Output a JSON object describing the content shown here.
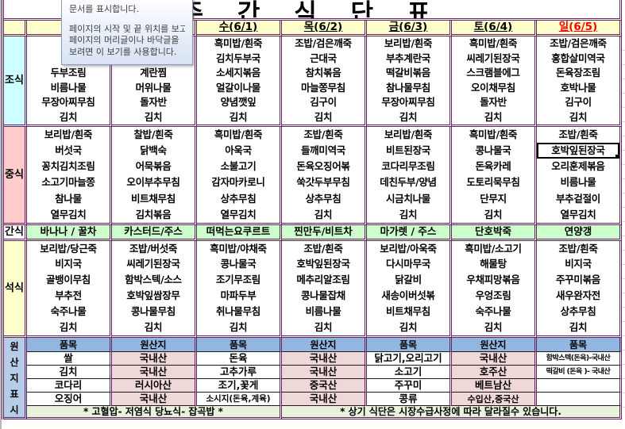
{
  "title": "주 간 식 단 표",
  "tooltip": {
    "lines": [
      "문서를 표시합니다.",
      "",
      "페이지의 시작 및 끝 위치를 보고",
      "페이지의 머리글이나 바닥글을",
      "보려면 이 보기를 사용합니다."
    ]
  },
  "colors": {
    "border_purple": "#632363",
    "header_yellow": "#FFFFCC",
    "breakfast_cyan": "#CCFFFF",
    "lunch_pink": "#FFCCCC",
    "snack_green": "#CCFFCC",
    "dinner_yellow": "#FFFFCC",
    "origin_label_blue": "#B5CDE8",
    "origin_header_blue": "#92B6DF",
    "origin_value_pink": "#F1D8D8",
    "note_green": "#EAF1DD",
    "sunday_red": "#FF0000"
  },
  "menu": {
    "day_headers": [
      "",
      "",
      "수(6/1)",
      "목(6/2)",
      "금(6/3)",
      "토(6/4)",
      "일(6/5)"
    ],
    "labels": {
      "breakfast": "조식",
      "lunch": "중식",
      "snack": "간식",
      "dinner": "석식"
    },
    "breakfast": [
      [
        "",
        "",
        "두부조림",
        "비름나물",
        "무장아찌무침",
        "김치"
      ],
      [
        "",
        "",
        "계란찜",
        "머위나물",
        "돌자반",
        "김치"
      ],
      [
        "흑미밥/흰죽",
        "김치두부국",
        "소세지볶음",
        "얼갈이나물",
        "양념깻잎",
        "김치"
      ],
      [
        "조밥/검은깨죽",
        "근대국",
        "참치볶음",
        "마늘쫑무침",
        "김구이",
        "김치"
      ],
      [
        "보리밥/흰죽",
        "부추계란국",
        "떡갈비볶음",
        "참나물무침",
        "무장아찌무침",
        "김치"
      ],
      [
        "흑미밥/흰죽",
        "씨레기된장국",
        "스크램블에그",
        "오이채무침",
        "돌자반",
        "김치"
      ],
      [
        "조밥/검은깨죽",
        "홍합살미역국",
        "돈육장조림",
        "호박나물",
        "김구이",
        "김치"
      ]
    ],
    "lunch": [
      [
        "보리밥/흰죽",
        "버섯국",
        "꽁치김치조림",
        "소고기마늘쫑",
        "참나물",
        "열무김치"
      ],
      [
        "찰밥/흰죽",
        "닭백숙",
        "어묵볶음",
        "오이부추무침",
        "비트채무침",
        "김치볶음"
      ],
      [
        "흑미밥/흰죽",
        "아욱국",
        "소불고기",
        "감자마카로니",
        "상추무침",
        "열무김치"
      ],
      [
        "조밥/흰죽",
        "들깨미역국",
        "돈육오징어볶",
        "쑥갓두부무침",
        "상추무침",
        "김치"
      ],
      [
        "보리밥/흰죽",
        "비트된장국",
        "코다리무조림",
        "데친두부/양념",
        "시금치나물",
        "김치"
      ],
      [
        "흑미밥/흰죽",
        "콩나물국",
        "돈육카레",
        "도토리묵무침",
        "단무지",
        "김치"
      ],
      [
        "조밥/흰죽",
        "호박잎된장국",
        "오리훈제볶음",
        "비름나물",
        "부추겉절이",
        "열무김치"
      ]
    ],
    "snack": [
      "바나나 / 꿀차",
      "카스터드/주스",
      "떠먹는요쿠르트",
      "찐만두/비트차",
      "마가렛 / 주스",
      "단호박죽",
      "연양갱"
    ],
    "dinner": [
      [
        "보리밥/당근죽",
        "비지국",
        "골뱅이무침",
        "부추전",
        "숙주나물",
        "김치"
      ],
      [
        "조밥/버섯죽",
        "씨레기된장국",
        "함박스텍/소스",
        "호박잎쌈장무",
        "콩나물무침",
        "김치"
      ],
      [
        "흑미밥/야채죽",
        "콩나물국",
        "조기무조림",
        "마파두부",
        "취나물무침",
        "김치"
      ],
      [
        "조밥/흰죽",
        "호박잎된장국",
        "메추리알조림",
        "콩나물잡채",
        "비름나물",
        "김치"
      ],
      [
        "보리밥/아욱죽",
        "다시마무국",
        "닭갈비",
        "새송이버섯볶",
        "비트채무침",
        "김치"
      ],
      [
        "흑미밥/소고기",
        "해물탕",
        "우채피망볶음",
        "우엉조림",
        "숙주나물",
        "김치"
      ],
      [
        "조밥/흰죽",
        "비지국",
        "주꾸미볶음",
        "새우완자전",
        "상추무침",
        "김치"
      ]
    ],
    "selected_cell": "호박잎된장국"
  },
  "origin": {
    "label": "원산지표시",
    "label_chars": [
      "원",
      "산",
      "지",
      "표",
      "시"
    ],
    "headers": [
      "품목",
      "원산지",
      "품목",
      "원산지",
      "품목",
      "원산지",
      "품목"
    ],
    "rows": [
      [
        "쌀",
        "국내산",
        "돈육",
        "국내산",
        "닭고기,오리고기",
        "국내산",
        "함박스텍(돈육)-국내산"
      ],
      [
        "김치",
        "국내산",
        "고추가루",
        "국내산",
        "소고기",
        "호주산",
        "떡갈비 (돈육 )- 국내산"
      ],
      [
        "코다리",
        "러시아산",
        "조기,꽃게",
        "중국산",
        "주꾸미",
        "베트남산",
        ""
      ],
      [
        "오징어",
        "국내산",
        "소시지(돈육,계육)",
        "국내산",
        "콩류",
        "수입산,중국산",
        ""
      ]
    ],
    "notes": [
      "* 고혈압- 저염식   당뇨식- 잡곡밥 *",
      "* 상기 식단은 시장수급사정에 따라 달라질수 있습니다."
    ]
  }
}
